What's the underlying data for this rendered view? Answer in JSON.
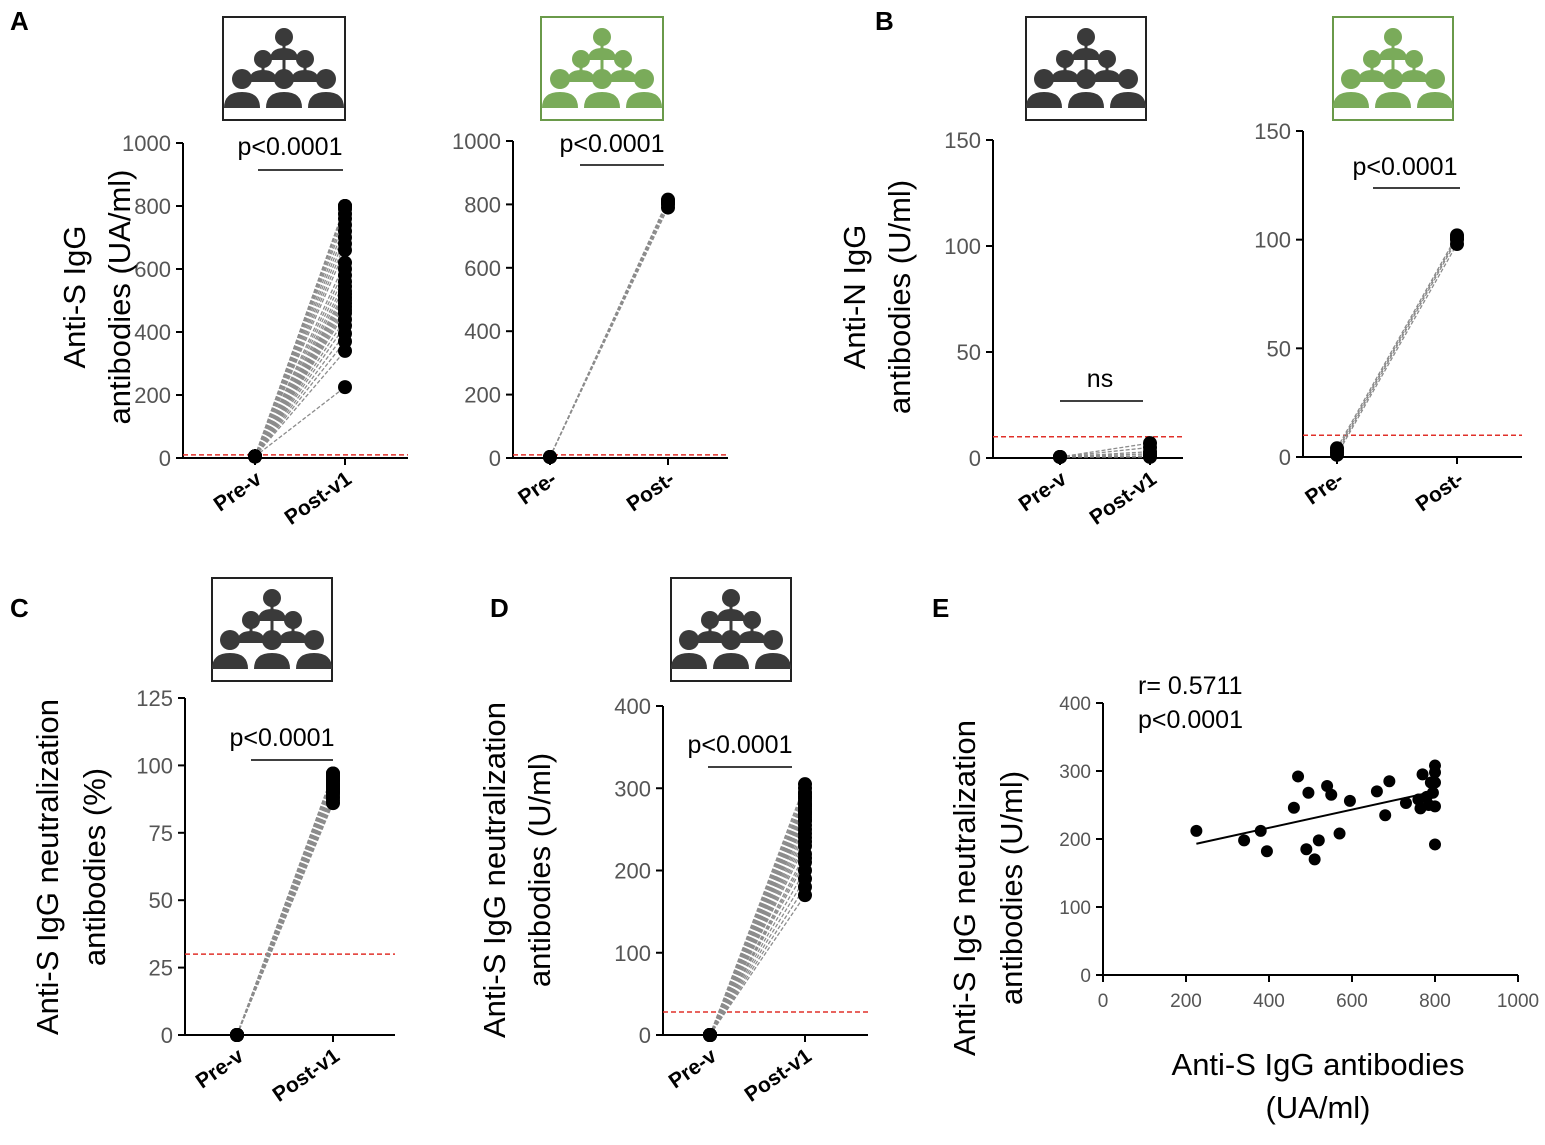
{
  "colors": {
    "axis": "#000000",
    "points": "#000000",
    "pair_lines": "#8c8c8c",
    "threshold": "#e0302a",
    "icon_dark": "#3a3a3a",
    "icon_green": "#7aab5a",
    "icon_green_border": "#6a9a4a"
  },
  "chart_data": [
    {
      "panel": "A",
      "id": "A1",
      "type": "scatter",
      "icon": "group-dark",
      "ylabel": [
        "Anti-S IgG",
        "antibodies (UA/ml)"
      ],
      "categories": [
        "Pre-v",
        "Post-v1"
      ],
      "ylim": [
        0,
        1000
      ],
      "yticks": [
        0,
        200,
        400,
        600,
        800,
        1000
      ],
      "threshold": 10,
      "annotation": "p<0.0001",
      "pre_values": [
        5,
        5,
        5,
        5,
        5,
        5,
        5,
        5,
        5,
        5,
        5,
        5,
        5,
        5,
        5,
        5,
        5,
        5,
        5,
        5,
        5,
        5,
        5,
        5,
        5,
        5,
        5,
        5,
        5,
        5
      ],
      "post_values": [
        225,
        340,
        370,
        395,
        420,
        440,
        460,
        470,
        480,
        490,
        500,
        510,
        520,
        530,
        545,
        560,
        580,
        600,
        620,
        660,
        680,
        700,
        720,
        740,
        760,
        775,
        790,
        800,
        800,
        800
      ]
    },
    {
      "panel": "",
      "id": "A2",
      "type": "scatter",
      "icon": "group-green",
      "ylabel": [],
      "categories": [
        "Pre-",
        "Post-"
      ],
      "ylim": [
        0,
        1000
      ],
      "yticks": [
        0,
        200,
        400,
        600,
        800,
        1000
      ],
      "threshold": 10,
      "annotation": "p<0.0001",
      "pre_values": [
        3,
        3,
        3,
        3,
        3
      ],
      "post_values": [
        790,
        800,
        805,
        810,
        815
      ]
    },
    {
      "panel": "B",
      "id": "B1",
      "type": "scatter",
      "icon": "group-dark",
      "ylabel": [
        "Anti-N IgG",
        "antibodies (U/ml)"
      ],
      "categories": [
        "Pre-v",
        "Post-v1"
      ],
      "ylim": [
        0,
        150
      ],
      "yticks": [
        0,
        50,
        100,
        150
      ],
      "threshold": 10,
      "annotation": "ns",
      "pre_values": [
        0.5,
        0.5,
        0.5,
        0.5,
        0.5,
        0.5
      ],
      "post_values": [
        0.5,
        1,
        2,
        3,
        5,
        7
      ]
    },
    {
      "panel": "",
      "id": "B2",
      "type": "scatter",
      "icon": "group-green",
      "ylabel": [],
      "categories": [
        "Pre-",
        "Post-"
      ],
      "ylim": [
        0,
        150
      ],
      "yticks": [
        0,
        50,
        100,
        150
      ],
      "threshold": 10,
      "annotation": "p<0.0001",
      "pre_values": [
        1,
        2,
        3,
        4
      ],
      "post_values": [
        98,
        100,
        101,
        102
      ]
    },
    {
      "panel": "C",
      "id": "C",
      "type": "scatter",
      "icon": "group-dark",
      "ylabel": [
        "Anti-S IgG neutralization",
        "antibodies (%)"
      ],
      "categories": [
        "Pre-v",
        "Post-v1"
      ],
      "ylim": [
        0,
        125
      ],
      "yticks": [
        0,
        25,
        50,
        75,
        100,
        125
      ],
      "threshold": 30,
      "annotation": "p<0.0001",
      "pre_values": [
        0,
        0,
        0,
        0,
        0,
        0,
        0,
        0,
        0,
        0,
        0,
        0,
        0,
        0,
        0,
        0,
        0,
        0,
        0,
        0
      ],
      "post_values": [
        86,
        87,
        88,
        89,
        90,
        90,
        91,
        91,
        92,
        92,
        93,
        93,
        94,
        94,
        95,
        95,
        96,
        96,
        97,
        97
      ]
    },
    {
      "panel": "D",
      "id": "D",
      "type": "scatter",
      "icon": "group-dark",
      "ylabel": [
        "Anti-S IgG neutralization",
        "antibodies (U/ml)"
      ],
      "categories": [
        "Pre-v",
        "Post-v1"
      ],
      "ylim": [
        0,
        400
      ],
      "yticks": [
        0,
        100,
        200,
        300,
        400
      ],
      "threshold": 28,
      "annotation": "p<0.0001",
      "pre_values": [
        0,
        0,
        0,
        0,
        0,
        0,
        0,
        0,
        0,
        0,
        0,
        0,
        0,
        0,
        0,
        0,
        0,
        0,
        0,
        0,
        0,
        0,
        0,
        0,
        0,
        0,
        0,
        0,
        0,
        0
      ],
      "post_values": [
        170,
        180,
        190,
        200,
        210,
        215,
        220,
        230,
        235,
        240,
        245,
        250,
        255,
        260,
        262,
        265,
        268,
        270,
        272,
        275,
        278,
        280,
        282,
        285,
        288,
        290,
        293,
        295,
        300,
        305
      ]
    },
    {
      "panel": "E",
      "id": "E",
      "type": "scatter",
      "icon": "",
      "ylabel": [
        "Anti-S IgG neutralization",
        "antibodies (U/ml)"
      ],
      "xlabel": [
        "Anti-S IgG antibodies",
        "(UA/ml)"
      ],
      "xlim": [
        0,
        1000
      ],
      "xticks": [
        0,
        200,
        400,
        600,
        800,
        1000
      ],
      "ylim": [
        0,
        400
      ],
      "yticks": [
        0,
        100,
        200,
        300,
        400
      ],
      "annotation_r": "r= 0.5711",
      "annotation_p": "p<0.0001",
      "x": [
        225,
        340,
        380,
        395,
        460,
        470,
        490,
        495,
        510,
        520,
        540,
        550,
        570,
        595,
        660,
        680,
        690,
        730,
        760,
        765,
        770,
        780,
        785,
        790,
        795,
        800,
        800,
        800,
        800,
        800
      ],
      "y": [
        212,
        198,
        212,
        182,
        246,
        292,
        185,
        268,
        170,
        198,
        278,
        265,
        208,
        256,
        270,
        235,
        285,
        253,
        258,
        245,
        295,
        262,
        250,
        283,
        268,
        308,
        298,
        283,
        248,
        192
      ],
      "fit": {
        "x": [
          225,
          800
        ],
        "y": [
          193,
          270
        ]
      }
    }
  ]
}
